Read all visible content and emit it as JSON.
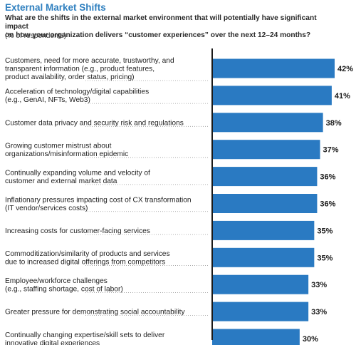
{
  "header": {
    "title": "External Market Shifts",
    "question_line1": "What are the shifts in the external market environment that will potentially have significant impact",
    "question_line2": "on how your organization delivers “customer experiences” over the next 12–24 months?",
    "base": "(% of respondents)"
  },
  "chart_data": {
    "type": "bar",
    "orientation": "horizontal",
    "title": "External Market Shifts",
    "value_suffix": "%",
    "bar_color": "#2a7ac2",
    "xlim": [
      0,
      42
    ],
    "categories": [
      [
        "Customers, need for more accurate, trustworthy, and",
        "transparent information (e.g., product features,",
        "product availability, order status, pricing)"
      ],
      [
        "Acceleration of technology/digital capabilities",
        "(e.g., GenAI, NFTs, Web3)"
      ],
      [
        "Customer data privacy and security risk and regulations"
      ],
      [
        "Growing customer mistrust about",
        "organizations/misinformation epidemic"
      ],
      [
        "Continually expanding volume and velocity of",
        "customer and external market data"
      ],
      [
        "Inflationary pressures impacting cost of CX transformation",
        "(IT vendor/services costs)"
      ],
      [
        "Increasing costs for customer-facing services"
      ],
      [
        "Commoditization/similarity of products and services",
        "due to increased digital offerings from competitors"
      ],
      [
        "Employee/workforce challenges",
        "(e.g., staffing shortage, cost of labor)"
      ],
      [
        "Greater pressure for demonstrating social accountability"
      ],
      [
        "Continually changing expertise/skill sets to deliver",
        "innovative digital experiences"
      ]
    ],
    "values": [
      42,
      41,
      38,
      37,
      36,
      36,
      35,
      35,
      33,
      33,
      30
    ],
    "value_labels": [
      "42%",
      "41%",
      "38%",
      "37%",
      "36%",
      "36%",
      "35%",
      "35%",
      "33%",
      "33%",
      "30%"
    ]
  }
}
